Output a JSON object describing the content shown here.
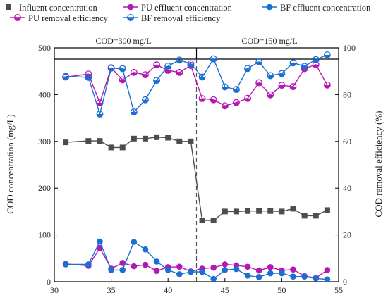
{
  "chart_data": {
    "type": "line",
    "x_axis": {
      "range": [
        30,
        55
      ],
      "ticks": [
        30,
        35,
        40,
        45,
        50,
        55
      ]
    },
    "y_axis_left": {
      "label": "COD concentration (mg/L)",
      "range": [
        0,
        500
      ],
      "ticks": [
        0,
        100,
        200,
        300,
        400,
        500
      ]
    },
    "y_axis_right": {
      "label": "COD removal  efficiency (%)",
      "range": [
        0,
        100
      ],
      "ticks": [
        0,
        20,
        40,
        60,
        80,
        100
      ]
    },
    "bands": [
      {
        "label": "COD=300 mg/L",
        "x_range": [
          30,
          42.5
        ]
      },
      {
        "label": "COD=150 mg/L",
        "x_range": [
          42.5,
          55
        ]
      }
    ],
    "divider_x": 42.5,
    "legend_position": "top",
    "series": [
      {
        "name": "Influent concentration",
        "axis": "left",
        "marker": "square",
        "color": "#4d4d4d",
        "x": [
          31,
          33,
          34,
          35,
          36,
          37,
          38,
          39,
          40,
          41,
          42,
          43,
          44,
          45,
          46,
          47,
          48,
          49,
          50,
          51,
          52,
          53,
          54
        ],
        "values": [
          298,
          301,
          301,
          287,
          287,
          306,
          306,
          309,
          308,
          300,
          300,
          131,
          131,
          150,
          150,
          151,
          151,
          151,
          150,
          156,
          141,
          141,
          153
        ]
      },
      {
        "name": "PU effluent concentration",
        "axis": "left",
        "marker": "circle",
        "color": "#b318b3",
        "x": [
          31,
          33,
          34,
          35,
          36,
          37,
          38,
          39,
          40,
          41,
          42,
          43,
          44,
          45,
          46,
          47,
          48,
          49,
          50,
          51,
          52,
          53,
          54
        ],
        "values": [
          38,
          34,
          72,
          28,
          40,
          33,
          36,
          23,
          31,
          32,
          22,
          28,
          30,
          37,
          35,
          32,
          24,
          31,
          24,
          26,
          12,
          8,
          25
        ]
      },
      {
        "name": "BF effluent concentration",
        "axis": "left",
        "marker": "circle",
        "color": "#1b6fd1",
        "x": [
          31,
          33,
          34,
          35,
          36,
          37,
          38,
          39,
          40,
          41,
          42,
          43,
          44,
          45,
          46,
          47,
          48,
          49,
          50,
          51,
          52,
          53,
          54
        ],
        "values": [
          37,
          37,
          86,
          25,
          25,
          85,
          69,
          43,
          25,
          16,
          21,
          21,
          6,
          25,
          27,
          13,
          10,
          18,
          18,
          11,
          11,
          7,
          5
        ]
      },
      {
        "name": "PU removal efficiency",
        "axis": "right",
        "marker": "half-circle",
        "color": "#b318b3",
        "x": [
          31,
          33,
          34,
          35,
          36,
          37,
          38,
          39,
          40,
          41,
          42,
          43,
          44,
          45,
          46,
          47,
          48,
          49,
          50,
          51,
          52,
          53,
          54
        ],
        "values": [
          87.5,
          88.8,
          76.5,
          91.5,
          86.3,
          89.5,
          88.5,
          92.7,
          90.4,
          89.5,
          92.5,
          78.3,
          77.8,
          75.2,
          76.6,
          78.4,
          85.1,
          79.9,
          84.0,
          83.4,
          91.1,
          92.8,
          84.1
        ]
      },
      {
        "name": "BF removal efficiency",
        "axis": "right",
        "marker": "half-circle",
        "color": "#1b6fd1",
        "x": [
          31,
          33,
          34,
          35,
          36,
          37,
          38,
          39,
          40,
          41,
          42,
          43,
          44,
          45,
          46,
          47,
          48,
          49,
          50,
          51,
          52,
          53,
          54
        ],
        "values": [
          87.8,
          87.4,
          71.7,
          91.3,
          91.1,
          72.6,
          77.8,
          86.1,
          92.2,
          94.8,
          93.2,
          87.5,
          95.3,
          83.3,
          82.2,
          91.2,
          94.0,
          88.1,
          89.0,
          93.6,
          92.1,
          95.0,
          97.0
        ]
      }
    ]
  }
}
